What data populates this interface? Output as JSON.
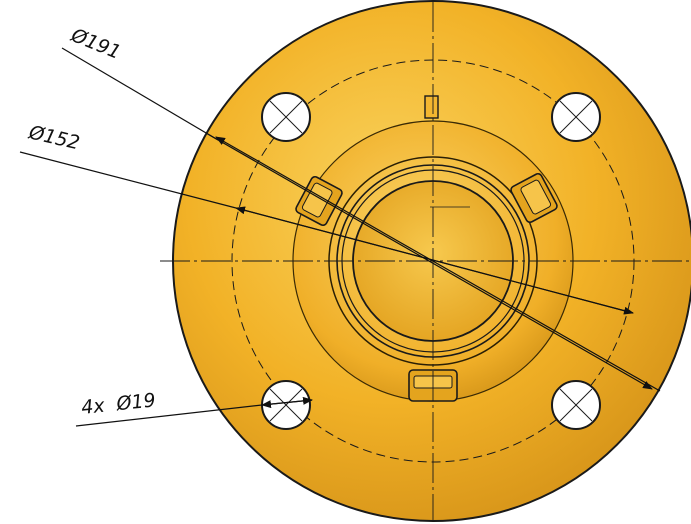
{
  "dimensions": {
    "outer_diameter": "Ø191",
    "bolt_circle_diameter": "Ø152",
    "hole_callout": "4x  Ø19"
  },
  "colors": {
    "flange_fill": "#F2B227",
    "flange_light": "#F8CC55",
    "flange_dark": "#C98A12",
    "outline": "#1a1a1a",
    "background": "#ffffff"
  }
}
